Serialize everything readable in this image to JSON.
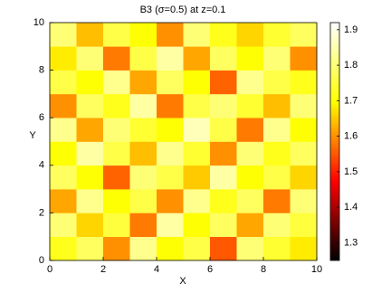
{
  "chart_data": {
    "type": "heatmap",
    "title": "B3 (σ=0.5) at z=0.1",
    "x_label": "X",
    "y_label": "Y",
    "xlim": [
      0,
      10
    ],
    "ylim": [
      0,
      10
    ],
    "xticks": [
      0,
      2,
      4,
      6,
      8,
      10
    ],
    "yticks": [
      0,
      2,
      4,
      6,
      8,
      10
    ],
    "colormap": "hot",
    "clim": [
      1.25,
      1.92
    ],
    "cticks": [
      1.3,
      1.4,
      1.5,
      1.6,
      1.7,
      1.8,
      1.9
    ],
    "z": [
      [
        1.72,
        1.78,
        1.6,
        1.82,
        1.7,
        1.76,
        1.55,
        1.8,
        1.74,
        1.68
      ],
      [
        1.8,
        1.66,
        1.75,
        1.58,
        1.84,
        1.7,
        1.78,
        1.62,
        1.8,
        1.75
      ],
      [
        1.62,
        1.82,
        1.7,
        1.76,
        1.6,
        1.82,
        1.72,
        1.78,
        1.58,
        1.8
      ],
      [
        1.78,
        1.7,
        1.56,
        1.8,
        1.76,
        1.65,
        1.84,
        1.7,
        1.76,
        1.66
      ],
      [
        1.7,
        1.84,
        1.76,
        1.64,
        1.82,
        1.74,
        1.6,
        1.8,
        1.72,
        1.78
      ],
      [
        1.82,
        1.62,
        1.8,
        1.74,
        1.7,
        1.86,
        1.76,
        1.58,
        1.82,
        1.7
      ],
      [
        1.6,
        1.78,
        1.72,
        1.84,
        1.58,
        1.76,
        1.8,
        1.74,
        1.64,
        1.8
      ],
      [
        1.76,
        1.7,
        1.82,
        1.62,
        1.78,
        1.7,
        1.56,
        1.82,
        1.76,
        1.72
      ],
      [
        1.68,
        1.8,
        1.58,
        1.76,
        1.84,
        1.62,
        1.78,
        1.7,
        1.8,
        1.6
      ],
      [
        1.8,
        1.64,
        1.76,
        1.7,
        1.6,
        1.8,
        1.72,
        1.66,
        1.74,
        1.78
      ]
    ]
  }
}
